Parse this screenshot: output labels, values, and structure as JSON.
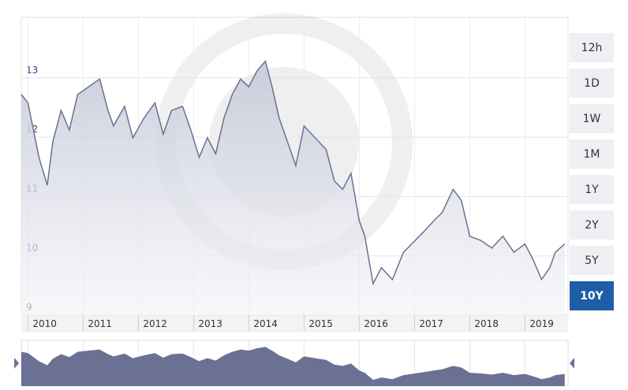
{
  "chart_data": {
    "type": "area",
    "x": [
      2009.88,
      2010.0,
      2010.1,
      2010.2,
      2010.35,
      2010.45,
      2010.6,
      2010.75,
      2010.9,
      2011.1,
      2011.3,
      2011.45,
      2011.55,
      2011.75,
      2011.9,
      2012.1,
      2012.3,
      2012.45,
      2012.6,
      2012.8,
      2012.95,
      2013.1,
      2013.25,
      2013.4,
      2013.55,
      2013.7,
      2013.85,
      2014.0,
      2014.15,
      2014.3,
      2014.42,
      2014.55,
      2014.7,
      2014.85,
      2015.0,
      2015.2,
      2015.4,
      2015.55,
      2015.7,
      2015.85,
      2016.0,
      2016.1,
      2016.25,
      2016.4,
      2016.6,
      2016.8,
      2016.95,
      2017.15,
      2017.35,
      2017.5,
      2017.7,
      2017.85,
      2018.0,
      2018.2,
      2018.4,
      2018.6,
      2018.8,
      2019.0,
      2019.15,
      2019.3,
      2019.45,
      2019.55,
      2019.72
    ],
    "values": [
      12.72,
      12.58,
      12.12,
      11.66,
      11.19,
      11.92,
      12.45,
      12.12,
      12.72,
      12.85,
      12.98,
      12.45,
      12.19,
      12.52,
      11.99,
      12.32,
      12.58,
      12.05,
      12.45,
      12.52,
      12.12,
      11.66,
      11.99,
      11.72,
      12.32,
      12.72,
      12.98,
      12.85,
      13.12,
      13.28,
      12.85,
      12.32,
      11.92,
      11.52,
      12.19,
      11.99,
      11.79,
      11.26,
      11.12,
      11.39,
      10.59,
      10.33,
      9.53,
      9.8,
      9.6,
      10.06,
      10.2,
      10.39,
      10.59,
      10.73,
      11.12,
      10.93,
      10.33,
      10.26,
      10.13,
      10.33,
      10.06,
      10.2,
      9.93,
      9.6,
      9.8,
      10.06,
      10.2
    ],
    "color": "#6b7193",
    "xlim": [
      2009.88,
      2019.78
    ],
    "xticks": [
      2010,
      2011,
      2012,
      2013,
      2014,
      2015,
      2016,
      2017,
      2018,
      2019
    ],
    "ylim": [
      9,
      14.02
    ],
    "yticks": [
      9,
      10,
      11,
      12,
      13
    ],
    "grid": true
  },
  "range_buttons": [
    "12h",
    "1D",
    "1W",
    "1M",
    "1Y",
    "2Y",
    "5Y",
    "10Y"
  ],
  "selected_range": 7
}
